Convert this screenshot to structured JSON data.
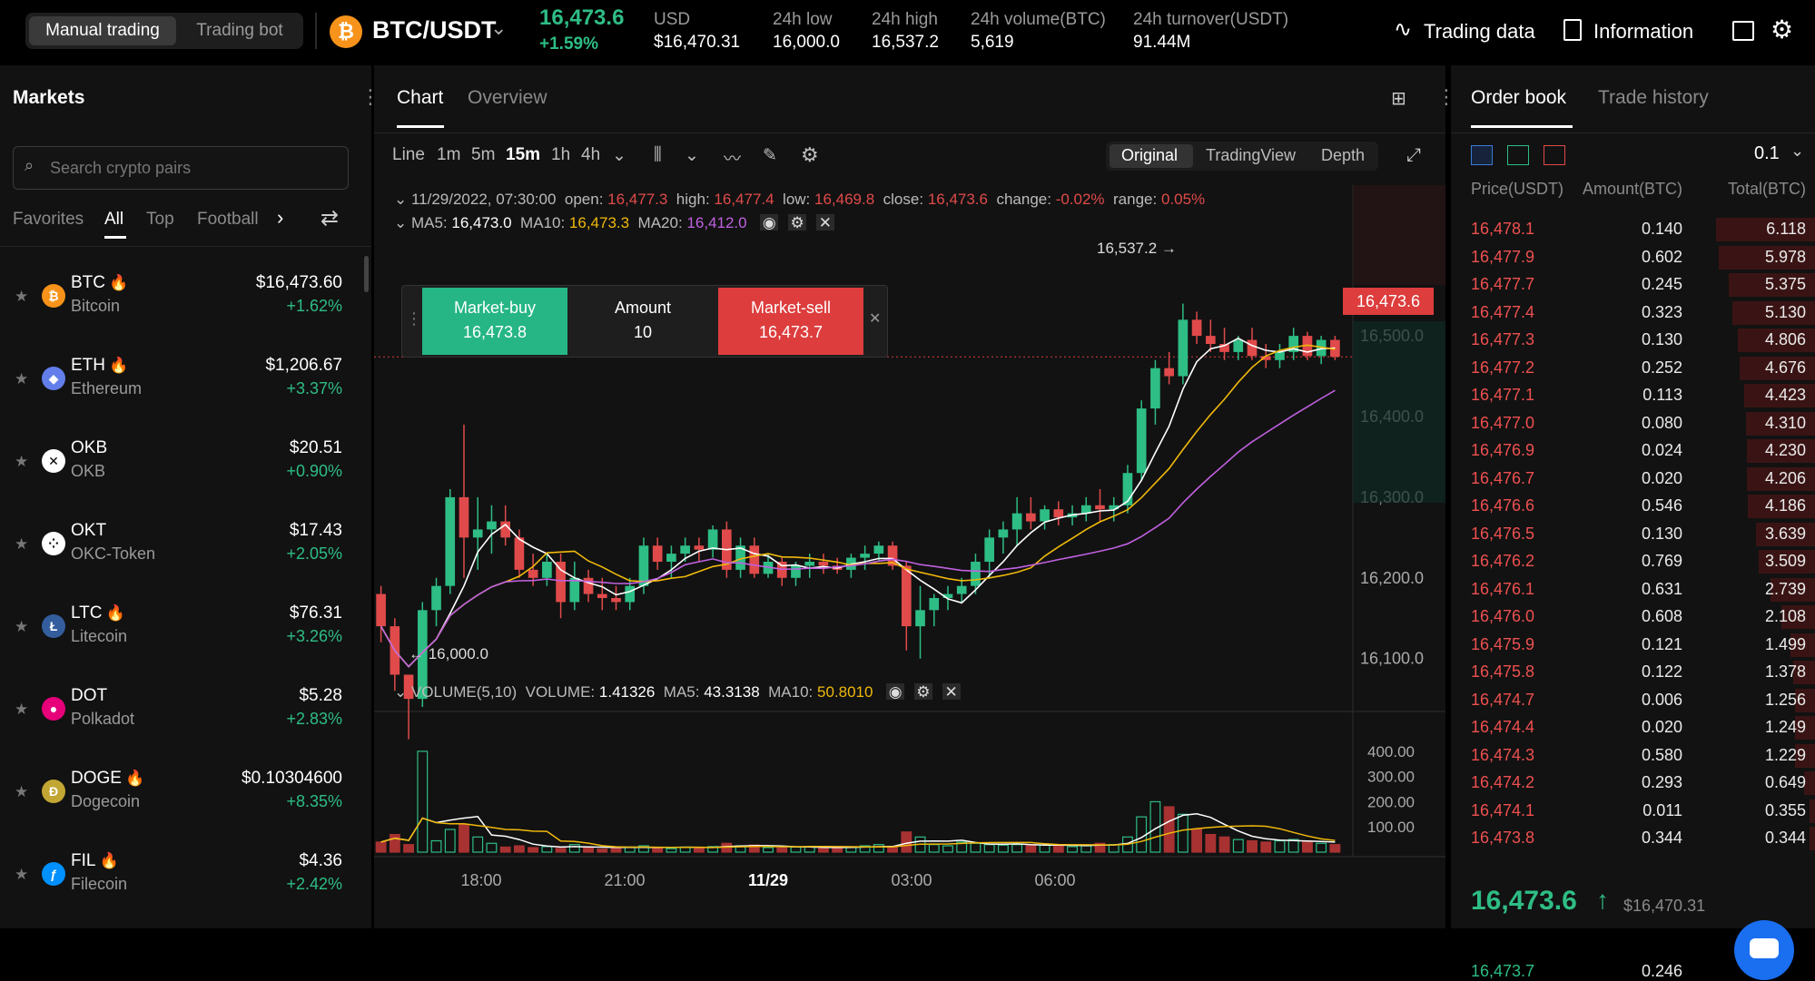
{
  "topbar": {
    "mode_tabs": [
      "Manual trading",
      "Trading bot"
    ],
    "pair": "BTC/USDT",
    "last_price": "16,473.6",
    "change_pct": "+1.59%",
    "stats": [
      {
        "label": "USD",
        "value": "$16,470.31"
      },
      {
        "label": "24h low",
        "value": "16,000.0"
      },
      {
        "label": "24h high",
        "value": "16,537.2"
      },
      {
        "label": "24h volume(BTC)",
        "value": "5,619"
      },
      {
        "label": "24h turnover(USDT)",
        "value": "91.44M"
      }
    ],
    "trading_data": "Trading data",
    "information": "Information"
  },
  "markets": {
    "title": "Markets",
    "search_placeholder": "Search crypto pairs",
    "tabs": [
      "Favorites",
      "All",
      "Top",
      "Football"
    ],
    "active_tab": "All",
    "rows": [
      {
        "symbol": "BTC",
        "name": "Bitcoin",
        "price": "$16,473.60",
        "change": "+1.62%",
        "hot": true,
        "color": "#f7931a",
        "glyph": "₿"
      },
      {
        "symbol": "ETH",
        "name": "Ethereum",
        "price": "$1,206.67",
        "change": "+3.37%",
        "hot": true,
        "color": "#627eea",
        "glyph": "◆"
      },
      {
        "symbol": "OKB",
        "name": "OKB",
        "price": "$20.51",
        "change": "+0.90%",
        "hot": false,
        "color": "#ffffff",
        "glyph": "✕"
      },
      {
        "symbol": "OKT",
        "name": "OKC-Token",
        "price": "$17.43",
        "change": "+2.05%",
        "hot": false,
        "color": "#ffffff",
        "glyph": "⁘"
      },
      {
        "symbol": "LTC",
        "name": "Litecoin",
        "price": "$76.31",
        "change": "+3.26%",
        "hot": true,
        "color": "#345d9d",
        "glyph": "Ł"
      },
      {
        "symbol": "DOT",
        "name": "Polkadot",
        "price": "$5.28",
        "change": "+2.83%",
        "hot": false,
        "color": "#e6007a",
        "glyph": "●"
      },
      {
        "symbol": "DOGE",
        "name": "Dogecoin",
        "price": "$0.10304600",
        "change": "+8.35%",
        "hot": true,
        "color": "#c2a633",
        "glyph": "Ð"
      },
      {
        "symbol": "FIL",
        "name": "Filecoin",
        "price": "$4.36",
        "change": "+2.42%",
        "hot": true,
        "color": "#0090ff",
        "glyph": "ƒ"
      }
    ]
  },
  "chart": {
    "tabs": [
      "Chart",
      "Overview"
    ],
    "timeframes": [
      "Line",
      "1m",
      "5m",
      "15m",
      "1h",
      "4h"
    ],
    "active_timeframe": "15m",
    "views": [
      "Original",
      "TradingView",
      "Depth"
    ],
    "active_view": "Original",
    "ohlc": {
      "date": "11/29/2022, 07:30:00",
      "open_label": "open:",
      "open": "16,477.3",
      "high_label": "high:",
      "high": "16,477.4",
      "low_label": "low:",
      "low": "16,469.8",
      "close_label": "close:",
      "close": "16,473.6",
      "change_label": "change:",
      "change": "-0.02%",
      "range_label": "range:",
      "range": "0.05%"
    },
    "ma": {
      "ma5_label": "MA5:",
      "ma5": "16,473.0",
      "ma10_label": "MA10:",
      "ma10": "16,473.3",
      "ma20_label": "MA20:",
      "ma20": "16,412.0"
    },
    "quick_trade": {
      "buy_label": "Market-buy",
      "buy_price": "16,473.8",
      "amount_label": "Amount",
      "amount": "10",
      "sell_label": "Market-sell",
      "sell_price": "16,473.7"
    },
    "high_marker": "16,537.2 →",
    "low_marker": "← 16,000.0",
    "current_price_tag": "16,473.6",
    "price_axis": [
      "16,500.0",
      "16,400.0",
      "16,300.0",
      "16,200.0",
      "16,100.0"
    ],
    "time_axis": [
      "18:00",
      "21:00",
      "11/29",
      "03:00",
      "06:00"
    ],
    "volume": {
      "title": "VOLUME(5,10)",
      "vol_label": "VOLUME:",
      "vol": "1.41326",
      "ma5_label": "MA5:",
      "ma5": "43.3138",
      "ma10_label": "MA10:",
      "ma10": "50.8010"
    },
    "volume_axis": [
      "400.00",
      "300.00",
      "200.00",
      "100.00"
    ]
  },
  "chart_data": {
    "type": "candlestick",
    "title": "BTC/USDT 15m",
    "ylim": [
      16040,
      16580
    ],
    "candles": [
      [
        16180,
        16190,
        16120,
        16140
      ],
      [
        16140,
        16150,
        16060,
        16080
      ],
      [
        16080,
        16080,
        16000,
        16050
      ],
      [
        16050,
        16170,
        16040,
        16160
      ],
      [
        16160,
        16200,
        16140,
        16190
      ],
      [
        16190,
        16310,
        16180,
        16300
      ],
      [
        16300,
        16390,
        16200,
        16250
      ],
      [
        16250,
        16300,
        16210,
        16260
      ],
      [
        16260,
        16290,
        16230,
        16270
      ],
      [
        16270,
        16290,
        16240,
        16250
      ],
      [
        16250,
        16260,
        16200,
        16210
      ],
      [
        16210,
        16230,
        16190,
        16200
      ],
      [
        16200,
        16230,
        16190,
        16220
      ],
      [
        16220,
        16230,
        16150,
        16170
      ],
      [
        16170,
        16220,
        16160,
        16200
      ],
      [
        16200,
        16210,
        16170,
        16180
      ],
      [
        16180,
        16200,
        16160,
        16175
      ],
      [
        16175,
        16190,
        16160,
        16170
      ],
      [
        16170,
        16200,
        16160,
        16190
      ],
      [
        16190,
        16250,
        16180,
        16240
      ],
      [
        16240,
        16250,
        16210,
        16220
      ],
      [
        16220,
        16240,
        16200,
        16230
      ],
      [
        16230,
        16250,
        16220,
        16240
      ],
      [
        16240,
        16250,
        16220,
        16235
      ],
      [
        16235,
        16265,
        16225,
        16260
      ],
      [
        16260,
        16270,
        16200,
        16210
      ],
      [
        16210,
        16250,
        16200,
        16240
      ],
      [
        16240,
        16250,
        16200,
        16205
      ],
      [
        16205,
        16230,
        16200,
        16220
      ],
      [
        16220,
        16225,
        16190,
        16200
      ],
      [
        16200,
        16220,
        16190,
        16215
      ],
      [
        16215,
        16230,
        16200,
        16220
      ],
      [
        16220,
        16230,
        16205,
        16215
      ],
      [
        16215,
        16225,
        16205,
        16210
      ],
      [
        16210,
        16230,
        16200,
        16225
      ],
      [
        16225,
        16240,
        16210,
        16230
      ],
      [
        16230,
        16245,
        16220,
        16240
      ],
      [
        16240,
        16245,
        16210,
        16215
      ],
      [
        16215,
        16220,
        16110,
        16140
      ],
      [
        16140,
        16190,
        16100,
        16160
      ],
      [
        16160,
        16180,
        16140,
        16175
      ],
      [
        16175,
        16190,
        16160,
        16180
      ],
      [
        16180,
        16200,
        16170,
        16190
      ],
      [
        16190,
        16230,
        16180,
        16220
      ],
      [
        16220,
        16260,
        16200,
        16250
      ],
      [
        16250,
        16270,
        16230,
        16260
      ],
      [
        16260,
        16300,
        16240,
        16280
      ],
      [
        16280,
        16300,
        16260,
        16270
      ],
      [
        16270,
        16290,
        16260,
        16285
      ],
      [
        16285,
        16295,
        16265,
        16275
      ],
      [
        16275,
        16290,
        16265,
        16280
      ],
      [
        16280,
        16300,
        16270,
        16290
      ],
      [
        16290,
        16310,
        16270,
        16285
      ],
      [
        16285,
        16300,
        16270,
        16290
      ],
      [
        16290,
        16340,
        16280,
        16330
      ],
      [
        16330,
        16420,
        16320,
        16410
      ],
      [
        16410,
        16470,
        16390,
        16460
      ],
      [
        16460,
        16480,
        16440,
        16450
      ],
      [
        16450,
        16540,
        16440,
        16520
      ],
      [
        16520,
        16530,
        16490,
        16500
      ],
      [
        16500,
        16520,
        16480,
        16490
      ],
      [
        16490,
        16510,
        16470,
        16480
      ],
      [
        16480,
        16500,
        16470,
        16495
      ],
      [
        16495,
        16510,
        16470,
        16475
      ],
      [
        16475,
        16490,
        16460,
        16470
      ],
      [
        16470,
        16490,
        16460,
        16480
      ],
      [
        16480,
        16510,
        16470,
        16500
      ],
      [
        16500,
        16505,
        16470,
        16475
      ],
      [
        16475,
        16500,
        16465,
        16495
      ],
      [
        16495,
        16500,
        16470,
        16474
      ]
    ],
    "volumes": [
      40,
      70,
      30,
      400,
      45,
      90,
      110,
      60,
      35,
      20,
      25,
      18,
      22,
      15,
      30,
      20,
      12,
      16,
      20,
      25,
      18,
      14,
      20,
      18,
      22,
      35,
      25,
      28,
      18,
      16,
      20,
      22,
      18,
      15,
      20,
      25,
      30,
      22,
      80,
      60,
      30,
      25,
      40,
      35,
      30,
      28,
      30,
      25,
      28,
      30,
      22,
      25,
      35,
      30,
      60,
      140,
      200,
      180,
      150,
      90,
      70,
      60,
      50,
      45,
      40,
      45,
      50,
      40,
      35,
      30
    ]
  },
  "orderbook": {
    "tabs": [
      "Order book",
      "Trade history"
    ],
    "precision": "0.1",
    "headers": [
      "Price(USDT)",
      "Amount(BTC)",
      "Total(BTC)"
    ],
    "asks": [
      [
        "16,478.1",
        "0.140",
        "6.118"
      ],
      [
        "16,477.9",
        "0.602",
        "5.978"
      ],
      [
        "16,477.7",
        "0.245",
        "5.375"
      ],
      [
        "16,477.4",
        "0.323",
        "5.130"
      ],
      [
        "16,477.3",
        "0.130",
        "4.806"
      ],
      [
        "16,477.2",
        "0.252",
        "4.676"
      ],
      [
        "16,477.1",
        "0.113",
        "4.423"
      ],
      [
        "16,477.0",
        "0.080",
        "4.310"
      ],
      [
        "16,476.9",
        "0.024",
        "4.230"
      ],
      [
        "16,476.7",
        "0.020",
        "4.206"
      ],
      [
        "16,476.6",
        "0.546",
        "4.186"
      ],
      [
        "16,476.5",
        "0.130",
        "3.639"
      ],
      [
        "16,476.2",
        "0.769",
        "3.509"
      ],
      [
        "16,476.1",
        "0.631",
        "2.739"
      ],
      [
        "16,476.0",
        "0.608",
        "2.108"
      ],
      [
        "16,475.9",
        "0.121",
        "1.499"
      ],
      [
        "16,475.8",
        "0.122",
        "1.378"
      ],
      [
        "16,474.7",
        "0.006",
        "1.256"
      ],
      [
        "16,474.4",
        "0.020",
        "1.249"
      ],
      [
        "16,474.3",
        "0.580",
        "1.229"
      ],
      [
        "16,474.2",
        "0.293",
        "0.649"
      ],
      [
        "16,474.1",
        "0.011",
        "0.355"
      ],
      [
        "16,473.8",
        "0.344",
        "0.344"
      ]
    ],
    "last_price": "16,473.6",
    "last_price_usd": "$16,470.31",
    "first_bid": [
      "16,473.7",
      "0.246"
    ]
  }
}
